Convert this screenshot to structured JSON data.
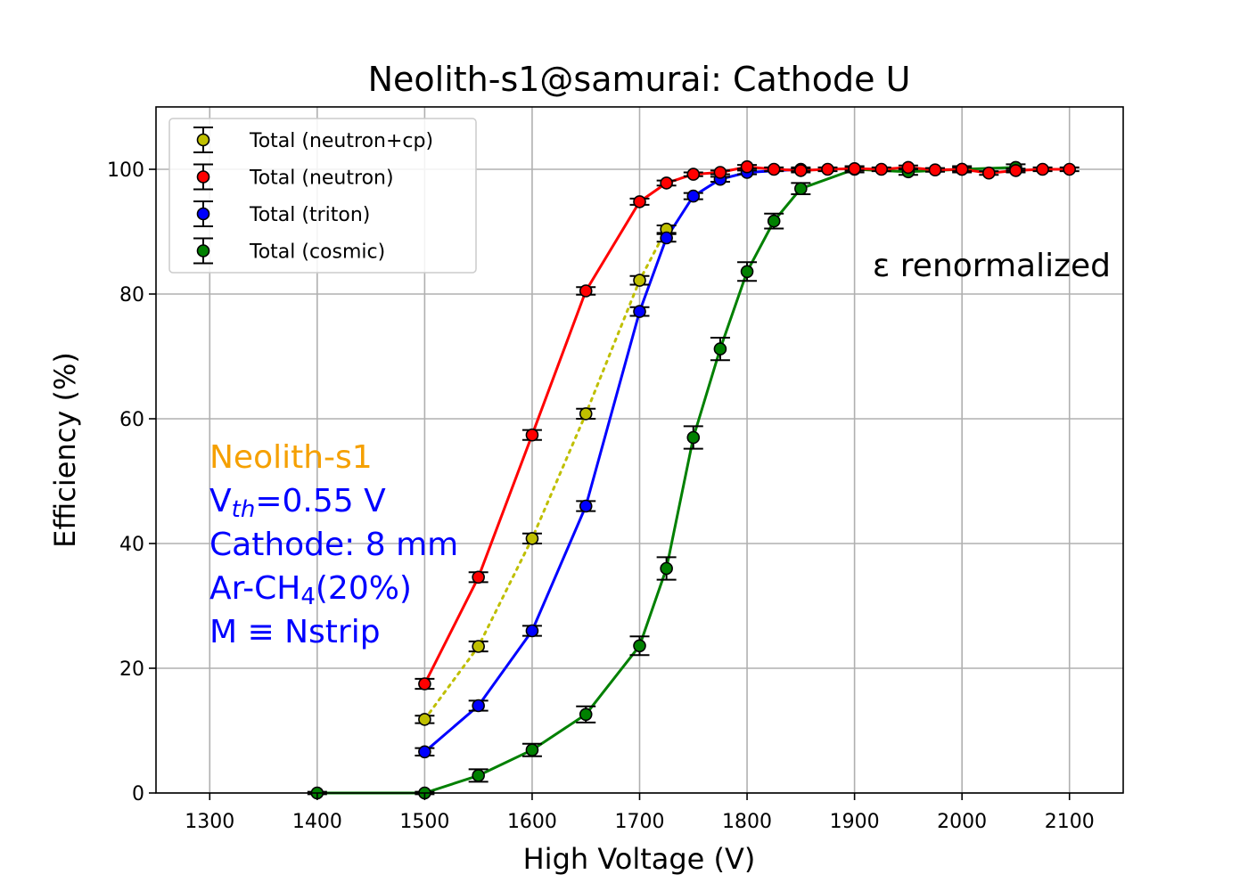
{
  "chart_data": {
    "type": "line",
    "title": "Neolith-s1@samurai: Cathode U",
    "xlabel": "High Voltage (V)",
    "ylabel": "Efficiency (%)",
    "xlim": [
      1250,
      2150
    ],
    "ylim": [
      0,
      110
    ],
    "xticks": [
      1300,
      1400,
      1500,
      1600,
      1700,
      1800,
      1900,
      2000,
      2100
    ],
    "yticks": [
      0,
      20,
      40,
      60,
      80,
      100
    ],
    "xtick_labels": [
      "1300",
      "1400",
      "1500",
      "1600",
      "1700",
      "1800",
      "1900",
      "2000",
      "2100"
    ],
    "ytick_labels": [
      "0",
      "20",
      "40",
      "60",
      "80",
      "100"
    ],
    "grid": true,
    "legend_position": "top-left",
    "series": [
      {
        "name": "Total (neutron+cp)",
        "color": "#bfbf00",
        "line_style": "dotted",
        "x": [
          1500,
          1550,
          1600,
          1650,
          1700,
          1725
        ],
        "y": [
          11.8,
          23.5,
          40.8,
          60.8,
          82.2,
          90.4
        ],
        "err": [
          0.6,
          0.8,
          0.8,
          0.8,
          0.7,
          0.6
        ]
      },
      {
        "name": "Total (neutron)",
        "color": "#ff0000",
        "line_style": "solid",
        "x": [
          1500,
          1550,
          1600,
          1650,
          1700,
          1725,
          1750,
          1775,
          1800,
          1825,
          1850,
          1875,
          1900,
          1925,
          1950,
          1975,
          2000,
          2025,
          2050,
          2075,
          2100
        ],
        "y": [
          17.5,
          34.6,
          57.4,
          80.5,
          94.8,
          97.8,
          99.2,
          99.5,
          100.4,
          100.0,
          99.8,
          100.0,
          100.1,
          100.0,
          100.3,
          99.9,
          100.0,
          99.4,
          99.8,
          100.0,
          100.0
        ],
        "err": [
          0.8,
          0.8,
          0.8,
          0.6,
          0.5,
          0.4,
          0.3,
          0.3,
          0.3,
          0.3,
          0.3,
          0.3,
          0.3,
          0.3,
          0.3,
          0.3,
          0.3,
          0.3,
          0.3,
          0.3,
          0.3
        ]
      },
      {
        "name": "Total (triton)",
        "color": "#0000ff",
        "line_style": "solid",
        "x": [
          1500,
          1550,
          1600,
          1650,
          1700,
          1725,
          1750,
          1775,
          1800,
          1850
        ],
        "y": [
          6.6,
          14.0,
          26.0,
          46.0,
          77.2,
          89.0,
          95.7,
          98.4,
          99.5,
          100.0
        ],
        "err": [
          0.6,
          0.8,
          0.8,
          0.8,
          0.7,
          0.6,
          0.5,
          0.4,
          0.3,
          0.3
        ]
      },
      {
        "name": "Total (cosmic)",
        "color": "#008000",
        "line_style": "solid",
        "x": [
          1400,
          1500,
          1550,
          1600,
          1650,
          1700,
          1725,
          1750,
          1775,
          1800,
          1825,
          1850,
          1900,
          1950,
          2000,
          2050
        ],
        "y": [
          0.0,
          0.0,
          2.8,
          6.9,
          12.6,
          23.6,
          36.0,
          57.0,
          71.2,
          83.6,
          91.7,
          96.9,
          100.0,
          99.6,
          100.0,
          100.3
        ],
        "err": [
          0.2,
          0.2,
          1.0,
          1.0,
          1.3,
          1.5,
          1.8,
          1.8,
          1.8,
          1.5,
          1.2,
          0.9,
          0.5,
          0.5,
          0.5,
          0.5
        ]
      }
    ],
    "annotations": {
      "renorm": "ε renormalized",
      "detector": "Neolith-s1",
      "vth_prefix": "V",
      "vth_sub": "th",
      "vth_value": "=0.55 V",
      "cathode": "Cathode: 8 mm",
      "gas_prefix": "Ar-CH",
      "gas_sub": "4",
      "gas_suffix": "(20%)",
      "multiplicity": "M ≡ Nstrip",
      "detector_color": "#f5a000",
      "info_color": "#0000ff"
    }
  }
}
